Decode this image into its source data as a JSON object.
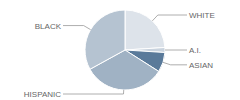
{
  "chart_data": {
    "type": "pie",
    "categories": [
      "WHITE",
      "A.I.",
      "ASIAN",
      "HISPANIC",
      "BLACK"
    ],
    "values": [
      24,
      2,
      8,
      33,
      33
    ],
    "colors": [
      "#dde3ea",
      "#c9d3de",
      "#5a7a9a",
      "#a0b2c4",
      "#b5c3d1"
    ]
  }
}
